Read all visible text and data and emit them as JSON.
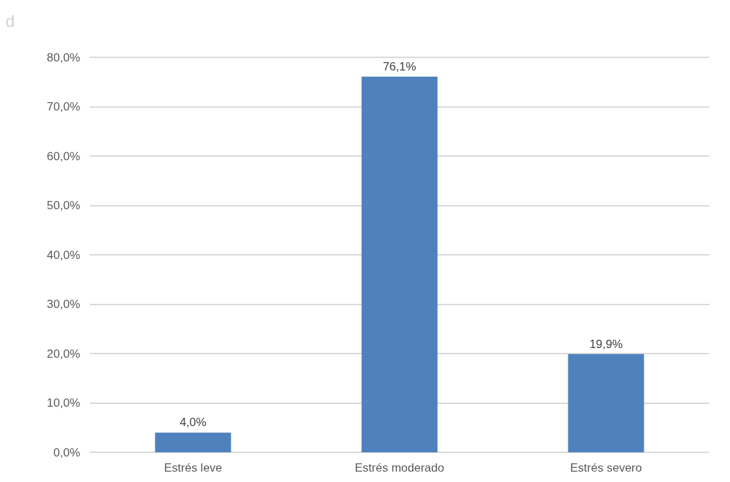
{
  "chart_data": {
    "type": "bar",
    "categories": [
      "Estrés leve",
      "Estrés moderado",
      "Estrés severo"
    ],
    "values": [
      4.0,
      76.1,
      19.9
    ],
    "value_labels": [
      "4,0%",
      "76,1%",
      "19,9%"
    ],
    "color": "#4f81bd",
    "ylim": [
      0,
      80
    ],
    "yticks": [
      {
        "value": 0,
        "label": "0,0%"
      },
      {
        "value": 10,
        "label": "10,0%"
      },
      {
        "value": 20,
        "label": "20,0%"
      },
      {
        "value": 30,
        "label": "30,0%"
      },
      {
        "value": 40,
        "label": "40,0%"
      },
      {
        "value": 50,
        "label": "50,0%"
      },
      {
        "value": 60,
        "label": "60,0%"
      },
      {
        "value": 70,
        "label": "70,0%"
      },
      {
        "value": 80,
        "label": "80,0%"
      }
    ],
    "grid": true,
    "annotations": [
      "d"
    ]
  }
}
